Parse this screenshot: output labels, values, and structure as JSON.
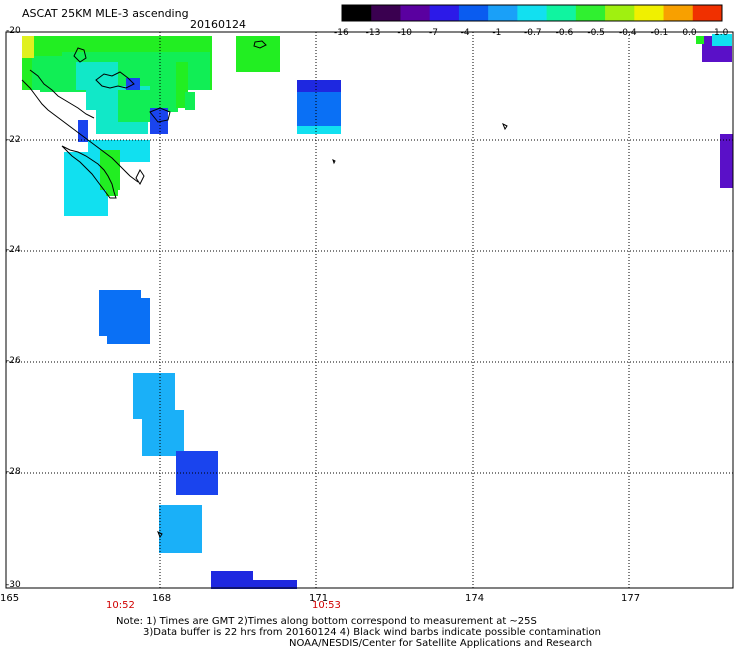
{
  "header": {
    "title": "ASCAT 25KM MLE-3 ascending",
    "date": "20160124"
  },
  "colorbar": {
    "labels": [
      "-16",
      "-13",
      "-10",
      "-7",
      "-4",
      "-1",
      "-0.7",
      "-0.6",
      "-0.5",
      "-0.4",
      "-0.1",
      "0.0",
      "1.0"
    ],
    "colors": [
      "#000000",
      "#3a0050",
      "#5a00a0",
      "#2c1ae8",
      "#0a5cf0",
      "#1aa0f8",
      "#12e0f0",
      "#10f4a0",
      "#30f030",
      "#a0f010",
      "#f0f000",
      "#f8a000",
      "#f03000"
    ]
  },
  "axes": {
    "lat_labels": [
      "-20",
      "-22",
      "-24",
      "-26",
      "-28",
      "-30"
    ],
    "lon_labels": [
      "165",
      "168",
      "171",
      "174",
      "177"
    ],
    "time_labels": [
      "10:52",
      "10:53"
    ]
  },
  "notes": {
    "line1": "Note: 1) Times are GMT 2)Times along bottom correspond to measurement at ~25S",
    "line2": "3)Data buffer is 22 hrs from 20160124 4) Black wind barbs indicate possible contamination",
    "line3": "NOAA/NESDIS/Center for Satellite Applications and Research"
  },
  "legend_colors": {
    "green": "#22ee22",
    "light_green": "#11ee55",
    "aqua": "#11e8c8",
    "cyan": "#11e0f0",
    "sky": "#1ab0f8",
    "blue": "#0a70f5",
    "deep_blue": "#1a44ee",
    "royal": "#1e28e0",
    "violet": "#5a10c8",
    "yellow": "#e0f020"
  }
}
